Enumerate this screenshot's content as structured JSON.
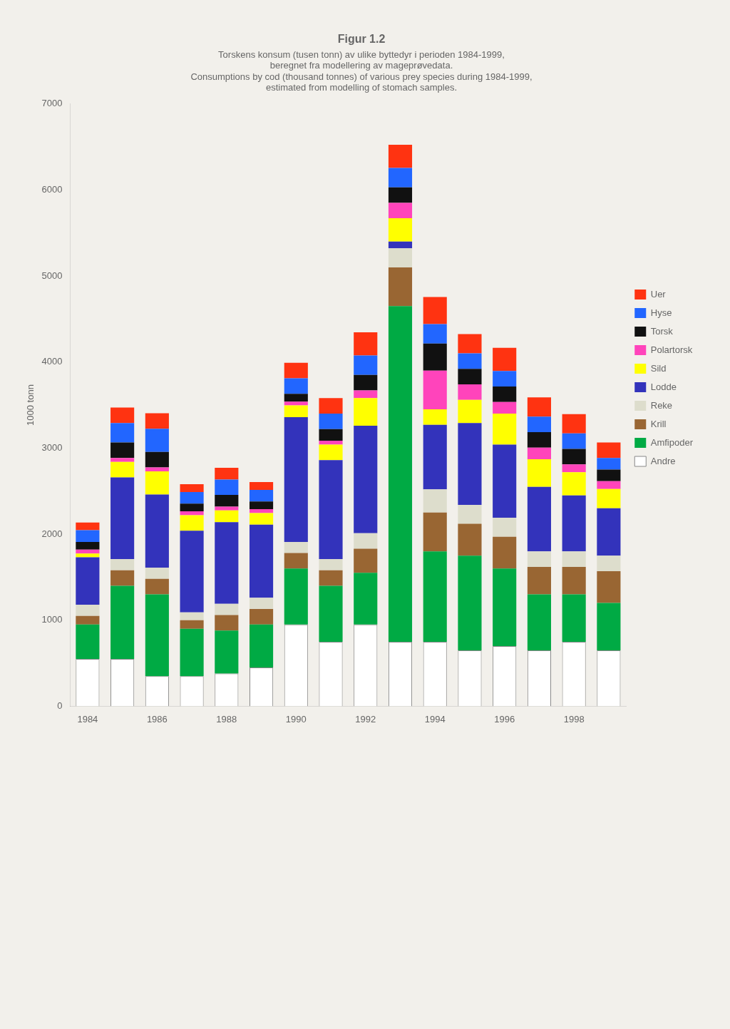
{
  "chart_data": {
    "type": "bar",
    "title": "Figur 1.2",
    "subtitle": [
      "Torskens konsum (tusen tonn) av ulike byttedyr i perioden 1984-1999,",
      "beregnet fra modellering av mageprøvedata.",
      "Consumptions by cod (thousand tonnes) of various prey species during 1984-1999,",
      "estimated from modelling of stomach samples."
    ],
    "ylabel": "1000 tonn",
    "categories": [
      1984,
      null,
      1986,
      null,
      1988,
      null,
      1990,
      null,
      1992,
      null,
      1994,
      null,
      1996,
      null,
      1998,
      null
    ],
    "series": [
      {
        "name": "Andre",
        "color": "#ffffff",
        "values": [
          550,
          550,
          350,
          350,
          380,
          450,
          950,
          750,
          950,
          750,
          750,
          650,
          700,
          650,
          750,
          650
        ]
      },
      {
        "name": "Amfipoder",
        "color": "#00aa44",
        "values": [
          400,
          850,
          950,
          550,
          500,
          500,
          650,
          650,
          600,
          3900,
          1050,
          1100,
          900,
          650,
          550,
          550
        ]
      },
      {
        "name": "Krill",
        "color": "#996633",
        "values": [
          100,
          180,
          180,
          100,
          180,
          180,
          180,
          180,
          280,
          450,
          450,
          370,
          370,
          320,
          320,
          370
        ]
      },
      {
        "name": "Reke",
        "color": "#ddddcc",
        "values": [
          130,
          130,
          130,
          90,
          130,
          130,
          130,
          130,
          180,
          220,
          270,
          220,
          220,
          180,
          180,
          180
        ]
      },
      {
        "name": "Lodde",
        "color": "#3333bb",
        "values": [
          550,
          950,
          850,
          950,
          950,
          850,
          1450,
          1150,
          1250,
          80,
          750,
          950,
          850,
          750,
          650,
          550
        ]
      },
      {
        "name": "Sild",
        "color": "#ffff00",
        "values": [
          45,
          180,
          270,
          180,
          135,
          135,
          135,
          180,
          320,
          270,
          180,
          270,
          360,
          320,
          270,
          225
        ]
      },
      {
        "name": "Polartorsk",
        "color": "#ff44bb",
        "values": [
          45,
          45,
          45,
          45,
          45,
          45,
          45,
          45,
          90,
          180,
          450,
          180,
          135,
          135,
          90,
          90
        ]
      },
      {
        "name": "Torsk",
        "color": "#111111",
        "values": [
          90,
          180,
          180,
          90,
          135,
          90,
          90,
          135,
          180,
          180,
          315,
          180,
          180,
          180,
          180,
          135
        ]
      },
      {
        "name": "Hyse",
        "color": "#2266ff",
        "values": [
          135,
          225,
          270,
          135,
          180,
          135,
          180,
          180,
          225,
          225,
          225,
          180,
          180,
          180,
          180,
          135
        ]
      },
      {
        "name": "Uer",
        "color": "#ff3311",
        "values": [
          90,
          180,
          180,
          90,
          135,
          90,
          180,
          180,
          270,
          270,
          315,
          225,
          270,
          225,
          225,
          180
        ]
      }
    ],
    "ylim": [
      0,
      7000
    ],
    "yticks": [
      0,
      1000,
      2000,
      3000,
      4000,
      5000,
      6000,
      7000
    ],
    "stacked": true,
    "grid": false,
    "legend": "right"
  }
}
